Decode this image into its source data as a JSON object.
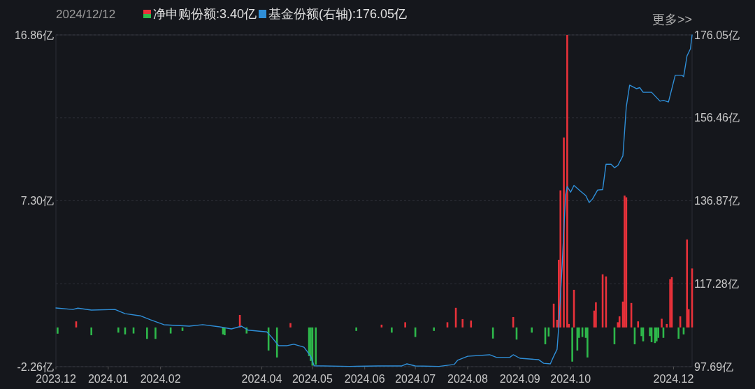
{
  "chart_data": {
    "type": "bar",
    "title": "2024/12/12",
    "legend": "top",
    "grid": "y",
    "annotations": [
      "更多>>"
    ],
    "xlim": [
      "2023-12-01",
      "2024-12-12"
    ],
    "xticks": [
      {
        "value": "2023-12-01",
        "label": "2023.12"
      },
      {
        "value": "2024-01-01",
        "label": "2024.01"
      },
      {
        "value": "2024-02-01",
        "label": "2024.02"
      },
      {
        "value": "2024-04-01",
        "label": "2024.04"
      },
      {
        "value": "2024-05-01",
        "label": "2024.05"
      },
      {
        "value": "2024-06-01",
        "label": "2024.06"
      },
      {
        "value": "2024-07-01",
        "label": "2024.07"
      },
      {
        "value": "2024-08-01",
        "label": "2024.08"
      },
      {
        "value": "2024-09-01",
        "label": "2024.09"
      },
      {
        "value": "2024-10-01",
        "label": "2024.10"
      },
      {
        "value": "2024-12-01",
        "label": "2024.12"
      }
    ],
    "ylim": [
      -2.26,
      16.86
    ],
    "yticks": [
      {
        "value": -2.26,
        "label": "-2.26亿"
      },
      {
        "value": 7.3,
        "label": "7.30亿"
      },
      {
        "value": 16.86,
        "label": "16.86亿"
      }
    ],
    "y2lim": [
      97.69,
      176.05
    ],
    "y2ticks": [
      {
        "value": 97.69,
        "label": "97.69亿"
      },
      {
        "value": 117.28,
        "label": "117.28亿"
      },
      {
        "value": 136.87,
        "label": "136.87亿"
      },
      {
        "value": 156.46,
        "label": "156.46亿"
      },
      {
        "value": 176.05,
        "label": "176.05亿"
      }
    ],
    "series": [
      {
        "name": "净申购份额:3.40亿",
        "color": "#e8313a",
        "x": [
          "2023-12-02",
          "2023-12-13",
          "2023-12-22",
          "2024-01-07",
          "2024-01-11",
          "2024-01-16",
          "2024-01-24",
          "2024-01-29",
          "2024-02-07",
          "2024-02-14",
          "2024-03-09",
          "2024-03-10",
          "2024-03-19",
          "2024-03-23",
          "2024-04-05",
          "2024-04-10",
          "2024-04-18",
          "2024-04-29",
          "2024-04-30",
          "2024-05-01",
          "2024-05-03",
          "2024-05-27",
          "2024-06-11",
          "2024-06-17",
          "2024-06-25",
          "2024-07-01",
          "2024-07-12",
          "2024-07-20",
          "2024-07-25",
          "2024-07-29",
          "2024-08-03",
          "2024-08-16",
          "2024-08-28",
          "2024-08-30",
          "2024-09-08",
          "2024-09-16",
          "2024-09-18",
          "2024-09-21",
          "2024-09-23",
          "2024-09-24",
          "2024-09-25",
          "2024-09-27",
          "2024-09-29",
          "2024-09-30",
          "2024-10-02",
          "2024-10-03",
          "2024-10-05",
          "2024-10-06",
          "2024-10-08",
          "2024-10-10",
          "2024-10-11",
          "2024-10-15",
          "2024-10-16",
          "2024-10-20",
          "2024-10-22",
          "2024-10-27",
          "2024-10-29",
          "2024-10-30",
          "2024-11-01",
          "2024-11-02",
          "2024-11-03",
          "2024-11-06",
          "2024-11-08",
          "2024-11-10",
          "2024-11-12",
          "2024-11-13",
          "2024-11-17",
          "2024-11-18",
          "2024-11-20",
          "2024-11-21",
          "2024-11-22",
          "2024-11-24",
          "2024-11-25",
          "2024-11-27",
          "2024-11-29",
          "2024-11-30",
          "2024-12-04",
          "2024-12-05",
          "2024-12-07",
          "2024-12-09",
          "2024-12-10",
          "2024-12-12"
        ],
        "values": [
          -0.36,
          0.35,
          -0.45,
          -0.3,
          -0.4,
          -0.35,
          -0.66,
          -0.66,
          -0.35,
          -0.2,
          -0.4,
          -0.45,
          0.72,
          -0.35,
          -1.33,
          -1.73,
          0.25,
          -1.65,
          -1.93,
          -2.2,
          -2.15,
          -0.2,
          0.16,
          -0.3,
          0.3,
          -0.55,
          -0.2,
          0.3,
          1.13,
          0.48,
          0.4,
          -0.64,
          0.6,
          -0.7,
          -0.3,
          -0.97,
          -0.52,
          1.37,
          0.44,
          3.9,
          7.9,
          10.95,
          16.86,
          0.2,
          -1.97,
          2.17,
          -1.33,
          -0.6,
          -0.55,
          -0.6,
          -1.73,
          0.97,
          1.45,
          3.06,
          2.94,
          -0.97,
          0.3,
          0.64,
          1.49,
          7.6,
          7.5,
          1.41,
          -0.97,
          0.35,
          -0.5,
          -0.8,
          -0.5,
          -0.85,
          -0.9,
          -0.8,
          -0.6,
          0.5,
          -0.6,
          0.2,
          2.78,
          2.9,
          -0.65,
          0.64,
          -0.4,
          5.07,
          1.05,
          3.4
        ],
        "colors": [
          "#2eb84b",
          "#e8313a",
          "#2eb84b",
          "#2eb84b",
          "#2eb84b",
          "#2eb84b",
          "#2eb84b",
          "#2eb84b",
          "#2eb84b",
          "#2eb84b",
          "#2eb84b",
          "#2eb84b",
          "#e8313a",
          "#2eb84b",
          "#2eb84b",
          "#2eb84b",
          "#e8313a",
          "#2eb84b",
          "#2eb84b",
          "#2eb84b",
          "#2eb84b",
          "#2eb84b",
          "#e8313a",
          "#2eb84b",
          "#e8313a",
          "#2eb84b",
          "#2eb84b",
          "#e8313a",
          "#e8313a",
          "#e8313a",
          "#e8313a",
          "#2eb84b",
          "#e8313a",
          "#2eb84b",
          "#2eb84b",
          "#2eb84b",
          "#2eb84b",
          "#e8313a",
          "#e8313a",
          "#e8313a",
          "#e8313a",
          "#e8313a",
          "#e8313a",
          "#e8313a",
          "#2eb84b",
          "#e8313a",
          "#2eb84b",
          "#2eb84b",
          "#2eb84b",
          "#2eb84b",
          "#2eb84b",
          "#e8313a",
          "#e8313a",
          "#e8313a",
          "#e8313a",
          "#2eb84b",
          "#e8313a",
          "#e8313a",
          "#e8313a",
          "#e8313a",
          "#e8313a",
          "#e8313a",
          "#2eb84b",
          "#e8313a",
          "#2eb84b",
          "#2eb84b",
          "#2eb84b",
          "#2eb84b",
          "#2eb84b",
          "#2eb84b",
          "#2eb84b",
          "#e8313a",
          "#2eb84b",
          "#e8313a",
          "#e8313a",
          "#e8313a",
          "#2eb84b",
          "#e8313a",
          "#2eb84b",
          "#e8313a",
          "#e8313a",
          "#e8313a"
        ]
      },
      {
        "type": "line",
        "name": "基金份额(右轴):176.05亿",
        "color": "#2f8fd8",
        "axis": "y2",
        "x": [
          "2023-12-01",
          "2023-12-11",
          "2023-12-14",
          "2023-12-22",
          "2024-01-05",
          "2024-01-11",
          "2024-01-20",
          "2024-01-26",
          "2024-02-03",
          "2024-02-18",
          "2024-02-26",
          "2024-03-07",
          "2024-03-14",
          "2024-03-20",
          "2024-03-24",
          "2024-04-04",
          "2024-04-07",
          "2024-04-11",
          "2024-04-16",
          "2024-04-20",
          "2024-04-26",
          "2024-04-30",
          "2024-05-02",
          "2024-05-23",
          "2024-06-09",
          "2024-06-23",
          "2024-06-26",
          "2024-07-01",
          "2024-07-15",
          "2024-07-24",
          "2024-07-26",
          "2024-08-01",
          "2024-08-14",
          "2024-08-18",
          "2024-08-26",
          "2024-08-28",
          "2024-09-01",
          "2024-09-12",
          "2024-09-15",
          "2024-09-19",
          "2024-09-21",
          "2024-09-23",
          "2024-09-24",
          "2024-09-26",
          "2024-09-28",
          "2024-09-29",
          "2024-10-01",
          "2024-10-03",
          "2024-10-07",
          "2024-10-10",
          "2024-10-12",
          "2024-10-14",
          "2024-10-17",
          "2024-10-20",
          "2024-10-22",
          "2024-10-25",
          "2024-10-27",
          "2024-10-29",
          "2024-11-01",
          "2024-11-03",
          "2024-11-05",
          "2024-11-09",
          "2024-11-11",
          "2024-11-13",
          "2024-11-18",
          "2024-11-23",
          "2024-11-25",
          "2024-11-28",
          "2024-12-02",
          "2024-12-06",
          "2024-12-07",
          "2024-12-09",
          "2024-12-11",
          "2024-12-12"
        ],
        "values": [
          111.55,
          111.2,
          111.5,
          111.05,
          111.2,
          110.2,
          109.7,
          108.75,
          107.6,
          107.25,
          107.6,
          107.1,
          106.6,
          107.25,
          106.3,
          105.9,
          104.6,
          102.65,
          102.65,
          103.0,
          102.3,
          100.15,
          97.9,
          97.75,
          97.86,
          97.86,
          98.35,
          97.86,
          97.75,
          98.2,
          99.18,
          100.15,
          100.5,
          99.9,
          99.9,
          100.5,
          99.67,
          99.35,
          98.5,
          98.35,
          100.15,
          101.8,
          107.25,
          121.6,
          138.1,
          140.25,
          138.9,
          140.5,
          139.1,
          138.1,
          136.45,
          137.3,
          139.4,
          139.5,
          145.5,
          145.5,
          144.7,
          145.2,
          147.5,
          159.05,
          164.2,
          163.35,
          163.6,
          162.5,
          162.5,
          160.4,
          160.6,
          160.2,
          166.5,
          166.5,
          166.2,
          171.1,
          172.75,
          176.05
        ]
      }
    ]
  }
}
